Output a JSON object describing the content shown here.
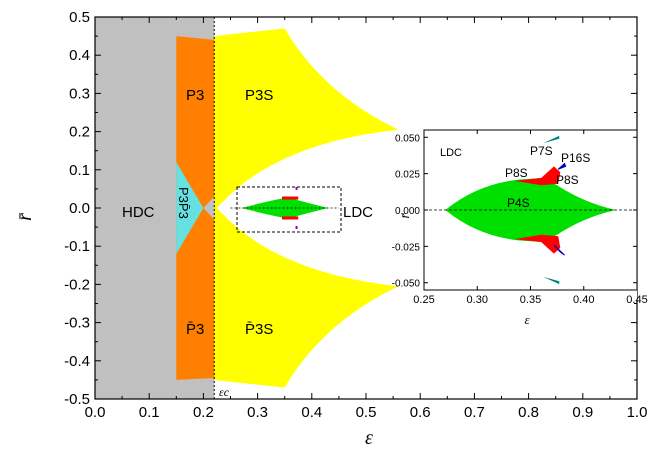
{
  "chart_data": [
    {
      "type": "area",
      "title": "",
      "xlabel": "ε",
      "ylabel": "r̄",
      "xlim": [
        0.0,
        1.0
      ],
      "ylim": [
        -0.5,
        0.5
      ],
      "x_ticks": [
        "0.0",
        "0.1",
        "0.2",
        "0.3",
        "0.4",
        "0.5",
        "0.6",
        "0.7",
        "0.8",
        "0.9",
        "1.0"
      ],
      "y_ticks": [
        "0.5",
        "0.4",
        "0.3",
        "0.2",
        "0.1",
        "0.0",
        "-0.1",
        "-0.2",
        "-0.3",
        "-0.4",
        "-0.5"
      ],
      "critical_line": {
        "label": "εc",
        "x": 0.22
      },
      "regions": [
        {
          "name": "HDC",
          "color": "#c0c0c0",
          "x_range": [
            0.0,
            0.22
          ],
          "y_range": [
            -0.5,
            0.5
          ]
        },
        {
          "name": "P3",
          "color": "#ff7f00",
          "x_range": [
            0.15,
            0.22
          ],
          "y_range": [
            0.0,
            0.45
          ]
        },
        {
          "name": "P̄3",
          "color": "#ff7f00",
          "x_range": [
            0.15,
            0.22
          ],
          "y_range": [
            -0.45,
            0.0
          ]
        },
        {
          "name": "P3P̄3",
          "color": "#66e0e0",
          "x_range": [
            0.15,
            0.2
          ],
          "y_range": [
            -0.12,
            0.12
          ]
        },
        {
          "name": "P3S",
          "color": "#ffff00",
          "x": [
            0.22,
            0.35,
            0.56
          ],
          "y_top": [
            0.45,
            0.47,
            0.2
          ],
          "y_inner": [
            0.0,
            0.13,
            0.2
          ]
        },
        {
          "name": "P̄3S",
          "color": "#ffff00",
          "x": [
            0.22,
            0.35,
            0.56
          ],
          "y_bottom": [
            -0.45,
            -0.47,
            -0.2
          ],
          "y_inner": [
            0.0,
            -0.13,
            -0.2
          ]
        },
        {
          "name": "LDC",
          "color": "#ffffff",
          "x_range": [
            0.22,
            1.0
          ],
          "y_range": [
            -0.2,
            0.2
          ]
        }
      ],
      "labels": {
        "hdc": "HDC",
        "p3": "P3",
        "p3s": "P3S",
        "p3p3": "P3P̄3",
        "p3bar": "P̄3",
        "p3sbar": "P̄3S",
        "ldc": "LDC",
        "eps_c": "εc"
      }
    },
    {
      "type": "area",
      "title": "",
      "xlabel": "ε",
      "ylabel": "r̄",
      "xlim": [
        0.25,
        0.45
      ],
      "ylim": [
        -0.055,
        0.055
      ],
      "x_ticks": [
        "0.25",
        "0.30",
        "0.35",
        "0.40",
        "0.45"
      ],
      "y_ticks": [
        "0.050",
        "0.025",
        "0.000",
        "-0.025",
        "-0.050"
      ],
      "regions": [
        {
          "name": "P4S",
          "color": "#00e000",
          "x": [
            0.27,
            0.35,
            0.38,
            0.43
          ],
          "y_half_width": [
            0.0,
            0.022,
            0.018,
            0.0
          ]
        },
        {
          "name": "P8S",
          "color": "#ff0000",
          "x_range": [
            0.33,
            0.375
          ],
          "y_abs_range": [
            0.018,
            0.03
          ]
        },
        {
          "name": "P16S",
          "color": "#0000cc",
          "x_range": [
            0.37,
            0.38
          ],
          "y_abs_range": [
            0.028,
            0.033
          ]
        },
        {
          "name": "P7S",
          "color": "#008080",
          "x_range": [
            0.36,
            0.375
          ],
          "y_abs_range": [
            0.045,
            0.05
          ]
        }
      ],
      "labels": {
        "ldc": "LDC",
        "p7s": "P7S",
        "p16s": "P16S",
        "p8s_left": "P8S",
        "p8s_right": "P8S",
        "p4s": "P4S"
      }
    }
  ]
}
